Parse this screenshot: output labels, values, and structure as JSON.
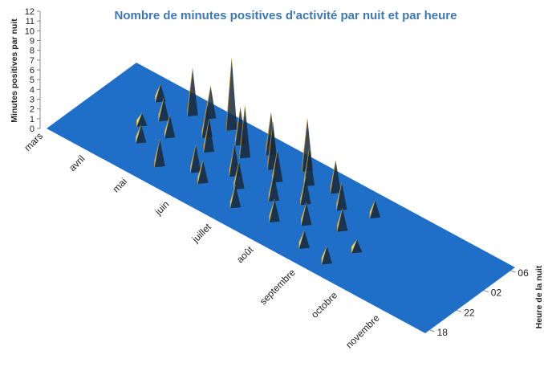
{
  "chart_data": {
    "type": "surface3d",
    "title": "Nombre de minutes positives d'activité par nuit et par heure",
    "zlabel": "Minutes positives par nuit",
    "depth_label": "Heure de la nuit",
    "categories": [
      "mars",
      "avril",
      "mai",
      "juin",
      "juillet",
      "août",
      "septembre",
      "octobre",
      "novembre"
    ],
    "depth_categories": [
      "18",
      "22",
      "02",
      "06"
    ],
    "zlim": [
      0,
      12
    ],
    "zticks": [
      0,
      1,
      2,
      3,
      4,
      5,
      6,
      7,
      8,
      9,
      10,
      11,
      12
    ],
    "floor_color": "#1f6fc8",
    "colorscale": [
      "#f4ee78",
      "#e39a4c",
      "#c00000"
    ],
    "peaks": {
      "month": [
        1.0,
        1.2,
        1.4,
        1.5,
        1.7,
        1.8,
        2.0,
        2.2,
        2.3,
        2.5,
        2.6,
        2.8,
        2.9,
        3.1,
        3.2,
        3.4,
        3.5,
        3.7,
        3.8,
        4.0,
        4.1,
        4.3,
        4.4,
        4.6,
        4.8,
        4.9,
        5.1,
        5.3,
        5.5,
        5.7,
        5.9,
        6.1,
        6.3,
        6.5
      ],
      "hour": [
        2.5,
        1.5,
        2.0,
        1.0,
        2.6,
        1.6,
        2.8,
        0.6,
        2.2,
        2.8,
        1.8,
        1.0,
        2.5,
        0.8,
        2.2,
        1.5,
        2.7,
        1.2,
        2.3,
        0.6,
        2.0,
        2.8,
        1.4,
        2.4,
        0.8,
        1.8,
        2.6,
        1.2,
        2.2,
        0.5,
        1.6,
        2.5,
        0.4,
        1.2
      ],
      "values": [
        1.5,
        1,
        2,
        1.5,
        4.5,
        2,
        3,
        2.5,
        3,
        7,
        3,
        2.5,
        3.5,
        2,
        5,
        3,
        4,
        2.5,
        4.5,
        2,
        3,
        5,
        2.5,
        3.5,
        2,
        2.5,
        3,
        2,
        2.5,
        1.5,
        2,
        1.5,
        1.5,
        1
      ]
    }
  }
}
